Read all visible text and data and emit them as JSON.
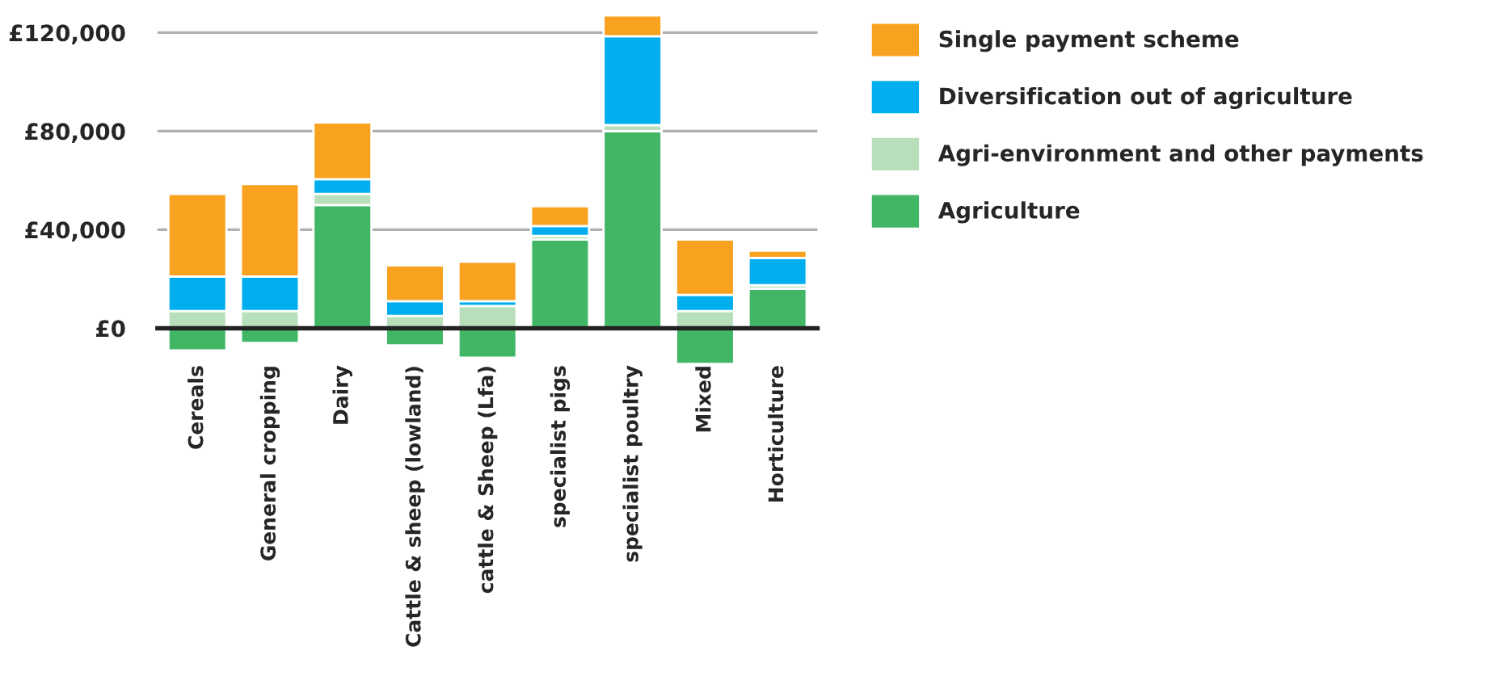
{
  "chart_data": {
    "type": "bar",
    "stacked": true,
    "categories": [
      "Cereals",
      "General cropping",
      "Dairy",
      "Cattle & sheep (lowland)",
      "cattle & Sheep (Lfa)",
      "specialist pigs",
      "specialist poultry",
      "Mixed",
      "Horticulture"
    ],
    "series": [
      {
        "name": "Agriculture",
        "color": "#41b766",
        "values": [
          -9000,
          -6000,
          50000,
          -7000,
          -12000,
          36000,
          80000,
          -14500,
          16000
        ]
      },
      {
        "name": "Agri-environment and other payments",
        "color": "#b7dfbb",
        "values": [
          7000,
          7000,
          4500,
          5000,
          9000,
          1500,
          2500,
          7000,
          1500
        ]
      },
      {
        "name": "Diversification out of agriculture",
        "color": "#00aeef",
        "values": [
          14000,
          14000,
          6000,
          6000,
          2000,
          4000,
          36000,
          6500,
          11000
        ]
      },
      {
        "name": "Single payment scheme",
        "color": "#f8a21f",
        "values": [
          33500,
          37500,
          23000,
          14500,
          16000,
          8000,
          8500,
          22500,
          3000
        ]
      }
    ],
    "ylim": [
      -15000,
      128000
    ],
    "yticks": [
      {
        "value": 0,
        "label": "£0"
      },
      {
        "value": 40000,
        "label": "£40,000"
      },
      {
        "value": 80000,
        "label": "£80,000"
      },
      {
        "value": 120000,
        "label": "£120,000"
      }
    ],
    "grid": "y",
    "legend": "right"
  }
}
